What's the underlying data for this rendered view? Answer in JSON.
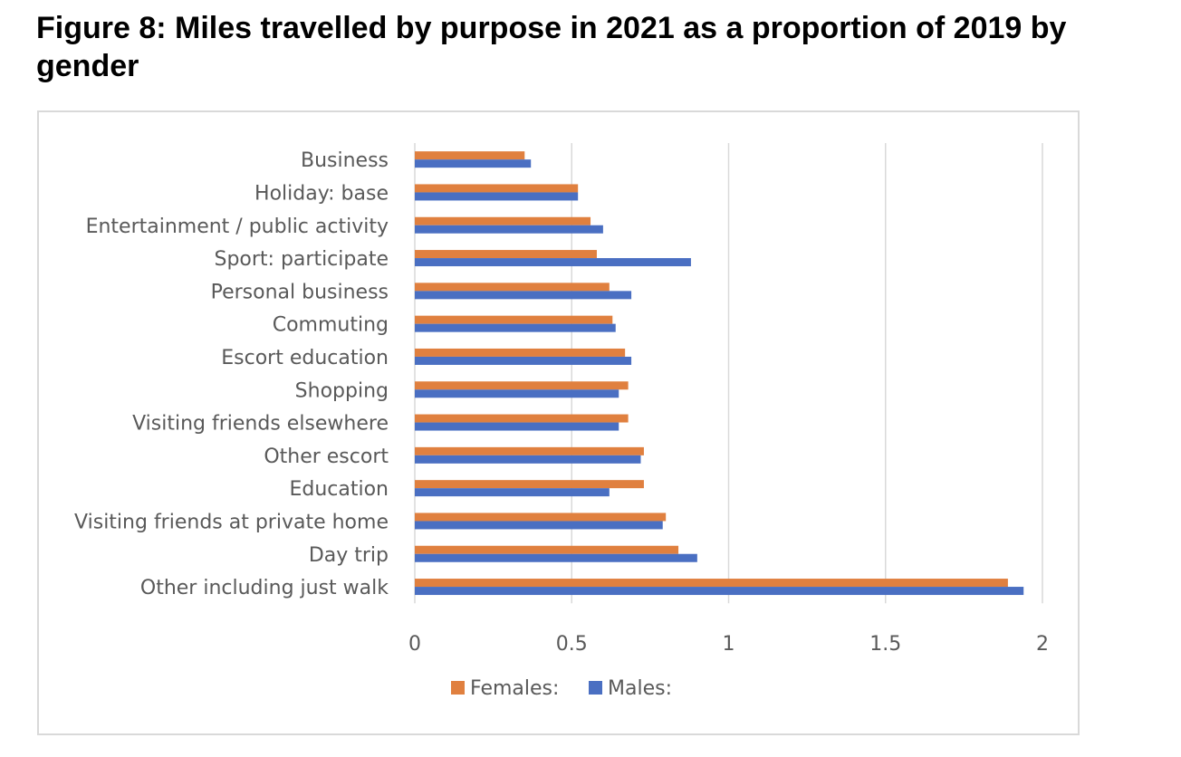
{
  "title": "Figure 8: Miles travelled by purpose in 2021 as a proportion of 2019 by gender",
  "chart_data": {
    "type": "bar",
    "orientation": "horizontal",
    "title": "Figure 8: Miles travelled by purpose in 2021 as a proportion of 2019 by gender",
    "xlabel": "",
    "ylabel": "",
    "xlim": [
      0,
      2
    ],
    "xticks": [
      0,
      0.5,
      1,
      1.5,
      2
    ],
    "xtick_labels": [
      "0",
      "0.5",
      "1",
      "1.5",
      "2"
    ],
    "grid": "vertical",
    "legend_position": "bottom",
    "categories": [
      "Business",
      "Holiday: base",
      "Entertainment / public activity",
      "Sport: participate",
      "Personal business",
      "Commuting",
      "Escort education",
      "Shopping",
      "Visiting friends elsewhere",
      "Other escort",
      "Education",
      "Visiting friends at private home",
      "Day trip",
      "Other including just walk"
    ],
    "series": [
      {
        "name": "Females:",
        "color": "#e0803f",
        "values": [
          0.35,
          0.52,
          0.56,
          0.58,
          0.62,
          0.63,
          0.67,
          0.68,
          0.68,
          0.73,
          0.73,
          0.8,
          0.84,
          1.89
        ]
      },
      {
        "name": "Males:",
        "color": "#4a6fc2",
        "values": [
          0.37,
          0.52,
          0.6,
          0.88,
          0.69,
          0.64,
          0.69,
          0.65,
          0.65,
          0.72,
          0.62,
          0.79,
          0.9,
          1.94
        ]
      }
    ]
  }
}
